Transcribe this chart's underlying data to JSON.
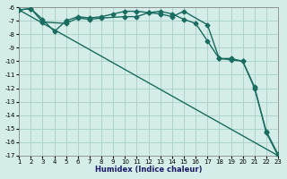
{
  "xlabel": "Humidex (Indice chaleur)",
  "ylabel": "",
  "bg_color": "#d4ede8",
  "grid_color": "#aed4cc",
  "line_color": "#1a6b60",
  "xlim": [
    1,
    23
  ],
  "ylim": [
    -17,
    -6
  ],
  "yticks": [
    -6,
    -7,
    -8,
    -9,
    -10,
    -11,
    -12,
    -13,
    -14,
    -15,
    -16,
    -17
  ],
  "xticks": [
    1,
    2,
    3,
    4,
    5,
    6,
    7,
    8,
    9,
    10,
    11,
    12,
    13,
    14,
    15,
    16,
    17,
    18,
    19,
    20,
    21,
    22,
    23
  ],
  "series1_x": [
    1,
    2,
    3,
    4,
    5,
    6,
    7,
    8,
    9,
    10,
    11,
    12,
    13,
    14,
    15,
    16,
    17,
    18,
    19,
    20,
    21,
    22,
    23
  ],
  "series1_y": [
    -6.2,
    -6.1,
    -6.9,
    -7.8,
    -7.0,
    -6.7,
    -6.8,
    -6.7,
    -6.5,
    -6.3,
    -6.3,
    -6.4,
    -6.3,
    -6.5,
    -6.9,
    -7.2,
    -8.5,
    -9.8,
    -9.9,
    -10.0,
    -12.0,
    -15.2,
    -16.9
  ],
  "series2_x": [
    1,
    2,
    3,
    5,
    6,
    7,
    8,
    10,
    11,
    12,
    13,
    14,
    15,
    17,
    18,
    19,
    20,
    21,
    22,
    23
  ],
  "series2_y": [
    -6.2,
    -6.1,
    -7.1,
    -7.2,
    -6.8,
    -6.9,
    -6.8,
    -6.7,
    -6.7,
    -6.4,
    -6.5,
    -6.7,
    -6.3,
    -7.3,
    -9.8,
    -9.8,
    -10.0,
    -11.9,
    -15.3,
    -17.0
  ],
  "series3_x": [
    1,
    23
  ],
  "series3_y": [
    -6.2,
    -17.0
  ],
  "marker_size": 2.5,
  "line_width": 1.0
}
